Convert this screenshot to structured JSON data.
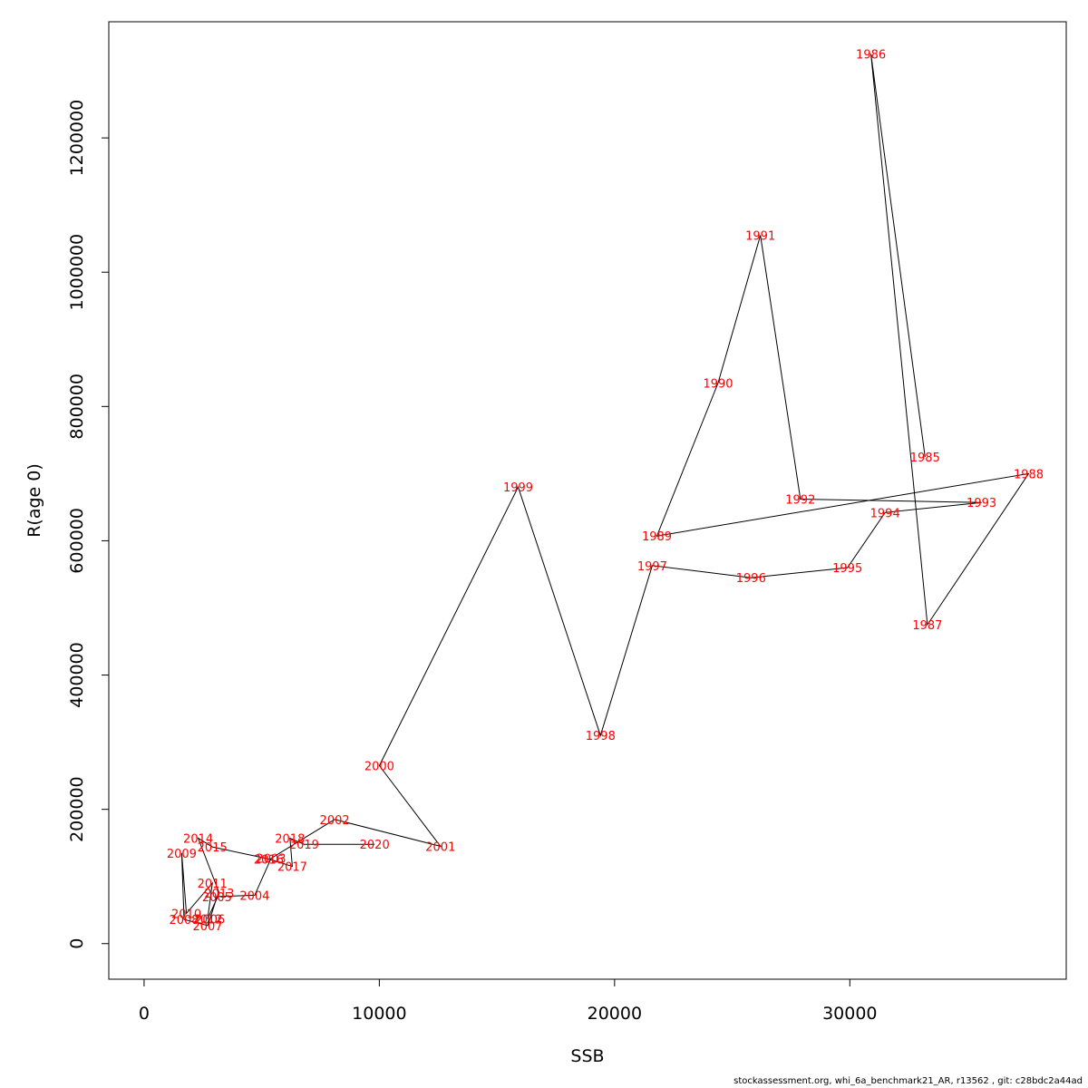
{
  "chart_data": {
    "type": "line",
    "title": "",
    "xlabel": "SSB",
    "ylabel": "R(age 0)",
    "xlim": [
      -1500,
      39200
    ],
    "ylim": [
      -53000,
      1373000
    ],
    "x_ticks": [
      0,
      10000,
      20000,
      30000
    ],
    "y_ticks": [
      0,
      200000,
      400000,
      600000,
      800000,
      1000000,
      1200000
    ],
    "grid": false,
    "line_color": "#000000",
    "label_color": "#ff0000",
    "points": [
      {
        "year": "1985",
        "ssb": 33200,
        "r": 725000
      },
      {
        "year": "1986",
        "ssb": 30900,
        "r": 1325000
      },
      {
        "year": "1987",
        "ssb": 33300,
        "r": 475000
      },
      {
        "year": "1988",
        "ssb": 37600,
        "r": 700000
      },
      {
        "year": "1989",
        "ssb": 21800,
        "r": 607000
      },
      {
        "year": "1990",
        "ssb": 24400,
        "r": 835000
      },
      {
        "year": "1991",
        "ssb": 26200,
        "r": 1055000
      },
      {
        "year": "1992",
        "ssb": 27900,
        "r": 662000
      },
      {
        "year": "1993",
        "ssb": 35600,
        "r": 657000
      },
      {
        "year": "1994",
        "ssb": 31500,
        "r": 642000
      },
      {
        "year": "1995",
        "ssb": 29900,
        "r": 560000
      },
      {
        "year": "1996",
        "ssb": 25800,
        "r": 545000
      },
      {
        "year": "1997",
        "ssb": 21600,
        "r": 563000
      },
      {
        "year": "1998",
        "ssb": 19400,
        "r": 310000
      },
      {
        "year": "1999",
        "ssb": 15900,
        "r": 680000
      },
      {
        "year": "2000",
        "ssb": 10000,
        "r": 265000
      },
      {
        "year": "2001",
        "ssb": 12600,
        "r": 145000
      },
      {
        "year": "2002",
        "ssb": 8100,
        "r": 185000
      },
      {
        "year": "2003",
        "ssb": 5400,
        "r": 127000
      },
      {
        "year": "2004",
        "ssb": 4700,
        "r": 72000
      },
      {
        "year": "2005",
        "ssb": 3100,
        "r": 70000
      },
      {
        "year": "2006",
        "ssb": 2800,
        "r": 37000
      },
      {
        "year": "2007",
        "ssb": 2700,
        "r": 27000
      },
      {
        "year": "2008",
        "ssb": 1700,
        "r": 36000
      },
      {
        "year": "2009",
        "ssb": 1600,
        "r": 135000
      },
      {
        "year": "2010",
        "ssb": 1800,
        "r": 45000
      },
      {
        "year": "2011",
        "ssb": 2900,
        "r": 90000
      },
      {
        "year": "2012",
        "ssb": 2700,
        "r": 37000
      },
      {
        "year": "2013",
        "ssb": 3200,
        "r": 75000
      },
      {
        "year": "2014",
        "ssb": 2300,
        "r": 157000
      },
      {
        "year": "2015",
        "ssb": 2900,
        "r": 144000
      },
      {
        "year": "2016",
        "ssb": 5300,
        "r": 126000
      },
      {
        "year": "2017",
        "ssb": 6300,
        "r": 115000
      },
      {
        "year": "2018",
        "ssb": 6200,
        "r": 157000
      },
      {
        "year": "2019",
        "ssb": 6800,
        "r": 148000
      },
      {
        "year": "2020",
        "ssb": 9800,
        "r": 148000
      }
    ]
  },
  "footer": "stockassessment.org, whi_6a_benchmark21_AR, r13562 , git: c28bdc2a44ad"
}
